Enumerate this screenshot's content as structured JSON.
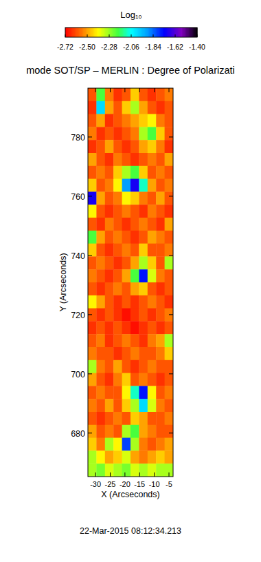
{
  "chart_data": {
    "type": "heatmap",
    "title": "mode SOT/SP – MERLIN : Degree of Polarizati",
    "x_label": "X (Arcseconds)",
    "y_label": "Y (Arcseconds)",
    "annotations": [
      "22-Mar-2015 08:12:34.213"
    ],
    "xlim": [
      -32.6,
      -3.6
    ],
    "ylim": [
      665.3,
      796.5
    ],
    "xticks": [
      -30,
      -25,
      -20,
      -15,
      -10,
      -5
    ],
    "yticks": [
      680,
      700,
      720,
      740,
      760,
      780
    ],
    "colorbar": {
      "title": "Log₁₀",
      "range": [
        -2.72,
        -1.4
      ],
      "ticks": [
        -2.72,
        {
          "value": -2.5,
          "label": "-2.50"
        },
        -2.28,
        -2.06,
        -1.84,
        -1.62,
        {
          "value": -1.4,
          "label": "-1.40"
        }
      ]
    },
    "cells": [
      [
        -2.6,
        -2.2,
        -2.55,
        -2.65,
        -2.6,
        -2.45,
        -2.6,
        -2.65,
        -2.6,
        -2.55
      ],
      [
        -2.65,
        -2.0,
        -2.5,
        -2.6,
        -2.45,
        -2.3,
        -2.5,
        -2.6,
        -2.65,
        -2.6
      ],
      [
        -2.6,
        -2.5,
        -2.65,
        -2.6,
        -2.55,
        -2.5,
        -2.45,
        -2.4,
        -2.55,
        -2.6
      ],
      [
        -2.55,
        -2.65,
        -2.6,
        -2.65,
        -2.6,
        -2.55,
        -2.3,
        -2.2,
        -2.45,
        -2.6
      ],
      [
        -2.65,
        -2.6,
        -2.5,
        -2.6,
        -2.65,
        -2.6,
        -2.5,
        -2.45,
        -2.55,
        -2.65
      ],
      [
        -2.5,
        -2.6,
        -2.65,
        -2.55,
        -2.6,
        -2.65,
        -2.6,
        -2.55,
        -2.6,
        -2.5
      ],
      [
        -2.6,
        -2.55,
        -2.6,
        -2.45,
        -2.3,
        -2.2,
        -2.45,
        -2.6,
        -2.55,
        -2.6
      ],
      [
        -2.45,
        -2.6,
        -2.55,
        -2.4,
        -1.9,
        -1.7,
        -2.1,
        -2.5,
        -2.6,
        -2.55
      ],
      [
        -1.7,
        -2.5,
        -2.6,
        -2.55,
        -2.4,
        -2.45,
        -2.55,
        -2.6,
        -2.5,
        -2.6
      ],
      [
        -2.4,
        -2.6,
        -2.65,
        -2.6,
        -2.55,
        -2.6,
        -2.65,
        -2.55,
        -2.6,
        -2.65
      ],
      [
        -2.6,
        -2.65,
        -2.55,
        -2.6,
        -2.65,
        -2.6,
        -2.55,
        -2.6,
        -2.65,
        -2.5
      ],
      [
        -2.2,
        -2.5,
        -2.6,
        -2.55,
        -2.6,
        -2.65,
        -2.6,
        -2.5,
        -2.55,
        -2.6
      ],
      [
        -2.45,
        -2.6,
        -2.65,
        -2.6,
        -2.55,
        -2.6,
        -2.45,
        -2.6,
        -2.6,
        -2.55
      ],
      [
        -2.6,
        -2.55,
        -2.6,
        -2.65,
        -2.6,
        -2.5,
        -2.3,
        -2.45,
        -2.6,
        -2.3
      ],
      [
        -2.55,
        -2.6,
        -2.65,
        -2.6,
        -2.5,
        -2.2,
        -1.75,
        -2.35,
        -2.55,
        -2.6
      ],
      [
        -2.6,
        -2.65,
        -2.6,
        -2.55,
        -2.6,
        -2.5,
        -2.45,
        -2.6,
        -2.65,
        -2.6
      ],
      [
        -2.4,
        -2.5,
        -2.6,
        -2.65,
        -2.6,
        -2.65,
        -2.6,
        -2.55,
        -2.6,
        -2.65
      ],
      [
        -2.6,
        -2.65,
        -2.6,
        -2.65,
        -2.7,
        -2.65,
        -2.6,
        -2.65,
        -2.6,
        -2.55
      ],
      [
        -2.65,
        -2.6,
        -2.65,
        -2.6,
        -2.65,
        -2.7,
        -2.65,
        -2.6,
        -2.65,
        -2.6
      ],
      [
        -2.6,
        -2.55,
        -2.65,
        -2.6,
        -2.55,
        -2.6,
        -2.65,
        -2.55,
        -2.5,
        -2.3
      ],
      [
        -2.55,
        -2.6,
        -2.6,
        -2.65,
        -2.6,
        -2.55,
        -2.6,
        -2.6,
        -2.55,
        -2.45
      ],
      [
        -2.3,
        -2.55,
        -2.6,
        -2.5,
        -2.6,
        -2.65,
        -2.6,
        -2.55,
        -2.6,
        -2.6
      ],
      [
        -2.5,
        -2.6,
        -2.65,
        -2.55,
        -2.45,
        -2.6,
        -2.55,
        -2.6,
        -2.65,
        -2.6
      ],
      [
        -2.6,
        -2.55,
        -2.6,
        -2.6,
        -2.4,
        -2.1,
        -1.75,
        -2.4,
        -2.6,
        -2.55
      ],
      [
        -2.55,
        -2.6,
        -2.5,
        -2.6,
        -2.45,
        -2.3,
        -2.0,
        -2.35,
        -2.55,
        -2.6
      ],
      [
        -2.6,
        -2.65,
        -2.6,
        -2.55,
        -2.6,
        -2.45,
        -2.5,
        -2.6,
        -2.6,
        -2.55
      ],
      [
        -2.5,
        -2.6,
        -2.55,
        -2.6,
        -2.3,
        -2.2,
        -2.5,
        -2.55,
        -2.6,
        -2.6
      ],
      [
        -2.45,
        -2.55,
        -2.3,
        -2.4,
        -1.8,
        -2.3,
        -2.55,
        -2.6,
        -2.55,
        -2.5
      ],
      [
        -2.3,
        -2.4,
        -2.5,
        -2.45,
        -2.35,
        -2.5,
        -2.55,
        -2.5,
        -2.45,
        -2.5
      ],
      [
        -2.3,
        -2.25,
        -2.35,
        -2.3,
        -2.25,
        -2.35,
        -2.3,
        -2.35,
        -2.3,
        -2.3
      ]
    ]
  }
}
